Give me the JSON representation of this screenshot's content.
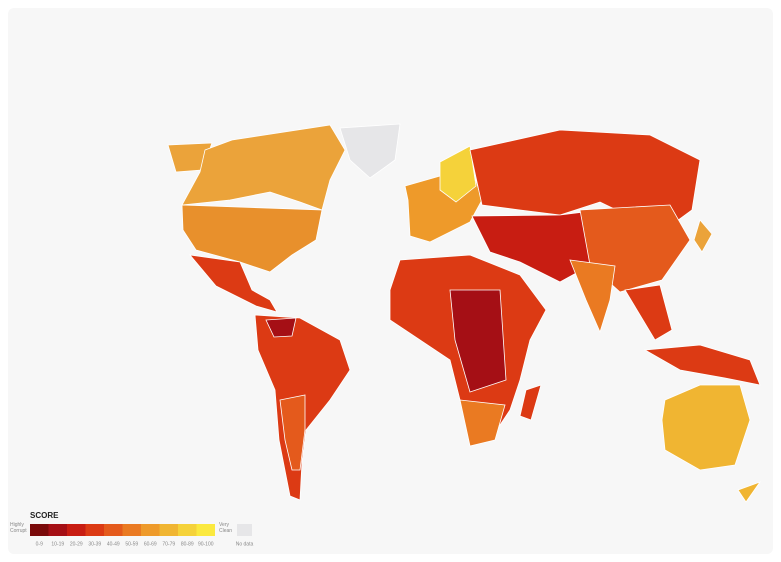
{
  "legend": {
    "title": "SCORE",
    "low_label": "Highly Corrupt",
    "high_label": "Very Clean",
    "bins": [
      {
        "label": "0-9",
        "color": "#7a0a0a"
      },
      {
        "label": "10-19",
        "color": "#a50f15"
      },
      {
        "label": "20-29",
        "color": "#c81d12"
      },
      {
        "label": "30-39",
        "color": "#dc3a14"
      },
      {
        "label": "40-49",
        "color": "#e45a1c"
      },
      {
        "label": "50-59",
        "color": "#ea7a22"
      },
      {
        "label": "60-69",
        "color": "#ee9a2a"
      },
      {
        "label": "70-79",
        "color": "#f0b532"
      },
      {
        "label": "80-89",
        "color": "#f5d23a"
      },
      {
        "label": "90-100",
        "color": "#fbe93f"
      }
    ],
    "no_data": {
      "label": "No data",
      "color": "#e6e6e8"
    }
  }
}
